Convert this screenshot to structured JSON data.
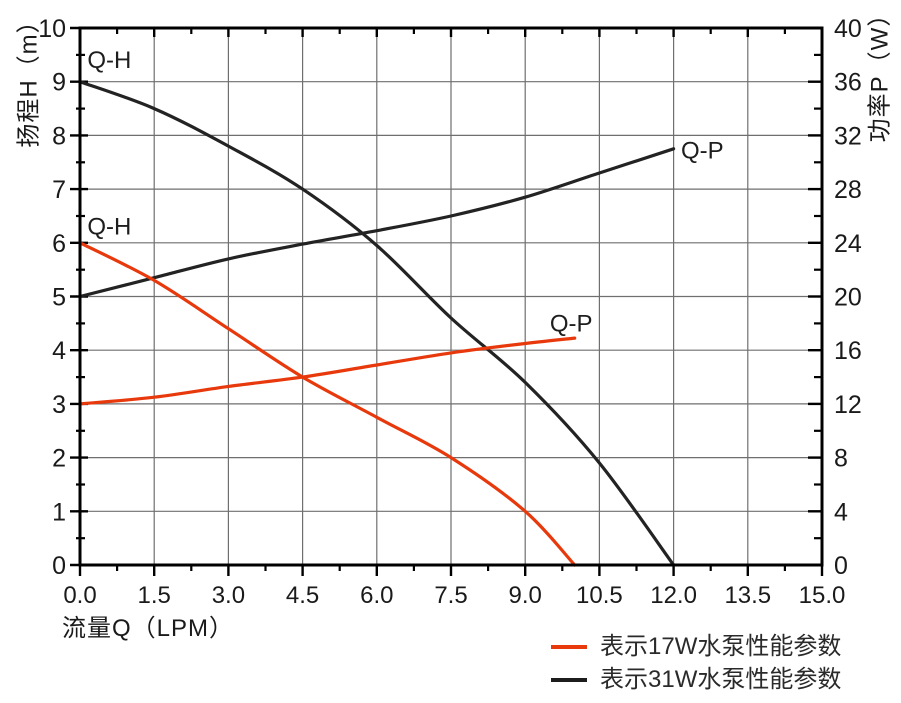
{
  "page": {
    "background": "#ffffff",
    "text_color": "#1a1a1a"
  },
  "chart_data": {
    "type": "line",
    "title": "",
    "x_axis": {
      "label": "流量Q（LPM）",
      "min": 0,
      "max": 15,
      "major_step": 1.5,
      "minor_step": 0.75,
      "tick_labels": [
        "0.0",
        "1.5",
        "3.0",
        "4.5",
        "6.0",
        "7.5",
        "9.0",
        "10.5",
        "12.0",
        "13.5",
        "15.0"
      ]
    },
    "y_left_axis": {
      "label": "扬程H（m）",
      "min": 0,
      "max": 10,
      "major_step": 1,
      "minor_step": 0.5,
      "tick_labels": [
        "0",
        "1",
        "2",
        "3",
        "4",
        "5",
        "6",
        "7",
        "8",
        "9",
        "10"
      ]
    },
    "y_right_axis": {
      "label": "功率P（W）",
      "min": 0,
      "max": 40,
      "major_step": 4,
      "minor_step": 2,
      "tick_labels": [
        "0",
        "4",
        "8",
        "12",
        "16",
        "20",
        "24",
        "28",
        "32",
        "36",
        "40"
      ]
    },
    "grid": true,
    "grid_color": "#6f6f6f",
    "frame_color": "#000000",
    "series": [
      {
        "name": "31W Q-H",
        "id": "qh-31w",
        "axis": "left",
        "color": "#232323",
        "points": [
          [
            0,
            9.0
          ],
          [
            1.5,
            8.5
          ],
          [
            3.0,
            7.8
          ],
          [
            4.5,
            7.0
          ],
          [
            6.0,
            5.95
          ],
          [
            7.5,
            4.6
          ],
          [
            9.0,
            3.4
          ],
          [
            10.5,
            1.9
          ],
          [
            12.0,
            0
          ]
        ]
      },
      {
        "name": "31W Q-P",
        "id": "qp-31w",
        "axis": "right",
        "color": "#232323",
        "points": [
          [
            0,
            20
          ],
          [
            1.5,
            21.4
          ],
          [
            3.0,
            22.8
          ],
          [
            4.5,
            23.9
          ],
          [
            6.0,
            24.9
          ],
          [
            7.5,
            26.0
          ],
          [
            9.0,
            27.4
          ],
          [
            10.5,
            29.2
          ],
          [
            12.0,
            31.0
          ]
        ]
      },
      {
        "name": "17W Q-H",
        "id": "qh-17w",
        "axis": "left",
        "color": "#e8390d",
        "points": [
          [
            0,
            6.0
          ],
          [
            1.5,
            5.3
          ],
          [
            3.0,
            4.4
          ],
          [
            4.5,
            3.5
          ],
          [
            6.0,
            2.75
          ],
          [
            7.5,
            2.0
          ],
          [
            9.0,
            1.0
          ],
          [
            10.0,
            0
          ]
        ]
      },
      {
        "name": "17W Q-P",
        "id": "qp-17w",
        "axis": "right",
        "color": "#e8390d",
        "points": [
          [
            0,
            12.0
          ],
          [
            1.5,
            12.5
          ],
          [
            3.0,
            13.3
          ],
          [
            4.5,
            14.0
          ],
          [
            6.0,
            14.9
          ],
          [
            7.5,
            15.8
          ],
          [
            9.0,
            16.5
          ],
          [
            10.0,
            16.9
          ]
        ]
      }
    ],
    "annotations": [
      {
        "text": "Q-H",
        "series": "qh-31w",
        "x": 0.15,
        "y": 9.4
      },
      {
        "text": "Q-H",
        "series": "qh-17w",
        "x": 0.15,
        "y": 6.3
      },
      {
        "text": "Q-P",
        "series": "qp-17w",
        "x": 9.5,
        "y": 4.5
      },
      {
        "text": "Q-P",
        "series": "qp-31w",
        "x": 12.15,
        "y": 7.72
      }
    ],
    "legend": [
      {
        "color": "#e8390d",
        "label": "表示17W水泵性能参数"
      },
      {
        "color": "#1d1d1d",
        "label": "表示31W水泵性能参数"
      }
    ],
    "legend_position": "bottom-right"
  }
}
